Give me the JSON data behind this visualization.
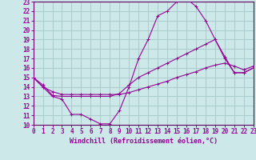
{
  "xlabel": "Windchill (Refroidissement éolien,°C)",
  "bg_color": "#cce8e8",
  "grid_color": "#aacccc",
  "line_color": "#990099",
  "spine_color": "#660066",
  "xmin": 0,
  "xmax": 23,
  "ymin": 10,
  "ymax": 23,
  "series": [
    [
      0,
      1,
      2,
      3,
      4,
      5,
      6,
      7,
      8,
      9,
      10,
      11,
      12,
      13,
      14,
      15,
      16,
      17,
      18,
      19,
      20,
      21,
      22,
      23
    ],
    [
      15,
      14,
      13,
      12.7,
      11.1,
      11.1,
      10.6,
      10.1,
      10.1,
      11.5,
      14,
      17,
      19,
      21.5,
      22,
      23,
      23.3,
      22.5,
      21,
      19,
      17.2,
      15.5,
      15.5,
      16
    ],
    [
      15,
      14.2,
      13.1,
      13.0,
      13.0,
      13.0,
      13.0,
      13.0,
      13.0,
      13.3,
      14.2,
      15.0,
      15.5,
      16.0,
      16.5,
      17.0,
      17.5,
      18.0,
      18.5,
      19.0,
      17.0,
      15.5,
      15.5,
      16.0
    ],
    [
      15,
      14.0,
      13.5,
      13.2,
      13.2,
      13.2,
      13.2,
      13.2,
      13.2,
      13.2,
      13.4,
      13.7,
      14.0,
      14.3,
      14.6,
      15.0,
      15.3,
      15.6,
      16.0,
      16.3,
      16.5,
      16.2,
      15.8,
      16.2
    ]
  ],
  "xlabel_fontsize": 6,
  "tick_fontsize": 5.5
}
